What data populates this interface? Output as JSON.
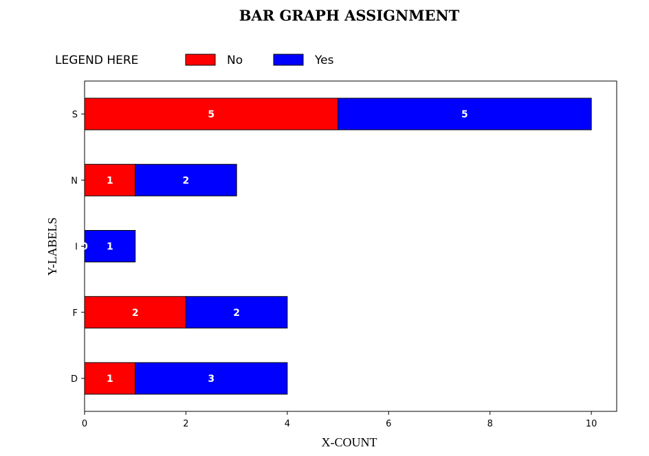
{
  "chart_data": {
    "type": "bar",
    "orientation": "horizontal",
    "stacked": true,
    "title": "BAR GRAPH ASSIGNMENT",
    "xlabel": "X-COUNT",
    "ylabel": "Y-LABELS",
    "categories": [
      "D",
      "F",
      "I",
      "N",
      "S"
    ],
    "series": [
      {
        "name": "No",
        "color": "#ff0000",
        "values": [
          1,
          2,
          0,
          1,
          5
        ]
      },
      {
        "name": "Yes",
        "color": "#0000ff",
        "values": [
          3,
          2,
          1,
          2,
          5
        ]
      }
    ],
    "xlim": [
      0,
      10.5
    ],
    "xticks": [
      0,
      2,
      4,
      6,
      8,
      10
    ],
    "legend": {
      "title": "LEGEND HERE",
      "placement": "top-left, outside plot"
    },
    "grid": false
  }
}
